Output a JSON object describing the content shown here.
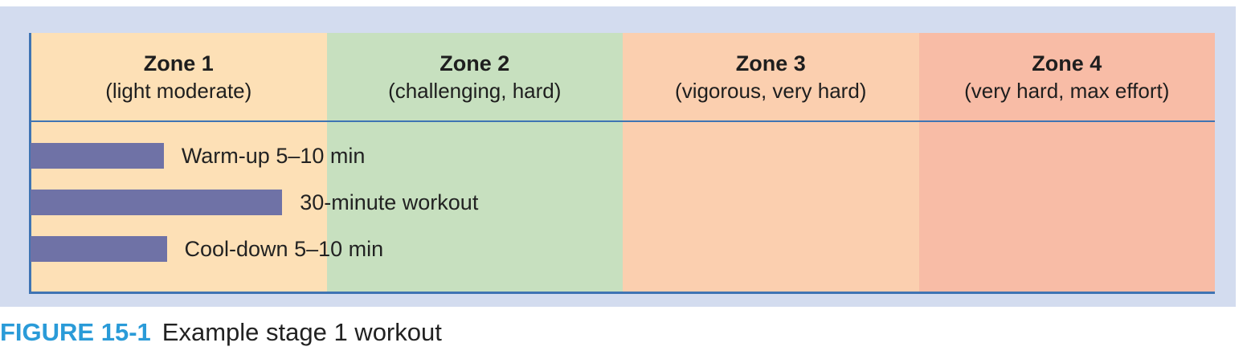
{
  "chart_data": {
    "type": "bar",
    "orientation": "horizontal",
    "zones": [
      {
        "title": "Zone 1",
        "subtitle": "(light moderate)",
        "color": "#fde0b6"
      },
      {
        "title": "Zone 2",
        "subtitle": "(challenging, hard)",
        "color": "#c7e0bf"
      },
      {
        "title": "Zone 3",
        "subtitle": "(vigorous, very hard)",
        "color": "#fbcfaf"
      },
      {
        "title": "Zone 4",
        "subtitle": "(very hard, max effort)",
        "color": "#f8bca6"
      }
    ],
    "bars": [
      {
        "label": "Warm-up 5–10 min",
        "value": 0.45
      },
      {
        "label": "30-minute workout",
        "value": 0.85
      },
      {
        "label": "Cool-down 5–10 min",
        "value": 0.46
      }
    ],
    "xlim": [
      0,
      4
    ],
    "bar_color": "#6f72a6",
    "axis_color": "#3f74b3"
  },
  "caption": {
    "figure_number": "FIGURE 15-1",
    "text": "Example stage 1 workout"
  }
}
